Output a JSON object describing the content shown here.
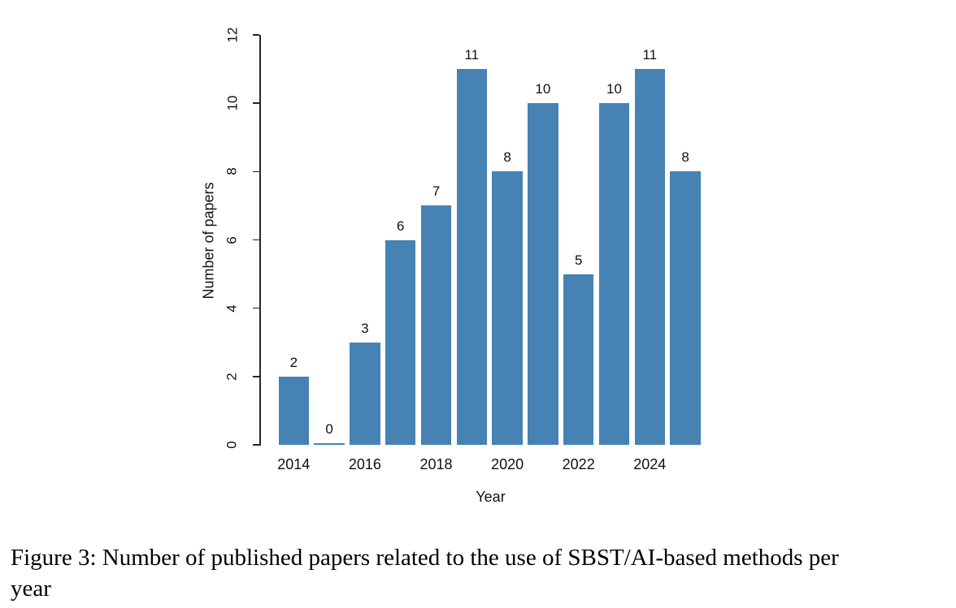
{
  "chart_data": {
    "type": "bar",
    "categories": [
      "2014",
      "2015",
      "2016",
      "2017",
      "2018",
      "2019",
      "2020",
      "2021",
      "2022",
      "2023",
      "2024",
      "2025"
    ],
    "values": [
      2,
      0,
      3,
      6,
      7,
      11,
      8,
      10,
      5,
      10,
      11,
      8
    ],
    "bar_value_labels": [
      "2",
      "0",
      "3",
      "6",
      "7",
      "11",
      "8",
      "10",
      "5",
      "10",
      "11",
      "8"
    ],
    "title": "",
    "xlabel": "Year",
    "ylabel": "Number of papers",
    "ylim": [
      0,
      12
    ],
    "yticks": [
      0,
      2,
      4,
      6,
      8,
      10,
      12
    ],
    "ytick_labels": [
      "0",
      "2",
      "4",
      "6",
      "8",
      "10",
      "12"
    ],
    "xticks_shown": [
      "2014",
      "2016",
      "2018",
      "2020",
      "2022",
      "2024"
    ],
    "xtick_every": 2,
    "grid": "off",
    "legend": "none",
    "bar_color": "#4682B4",
    "axis_color": "#262626"
  },
  "caption": {
    "full": "Figure 3: Number of published papers related to the use of SBST/AI-based methods per year",
    "line1": "Figure 3: Number of published papers related to the use of SBST/AI-based methods per",
    "line2": "year"
  }
}
